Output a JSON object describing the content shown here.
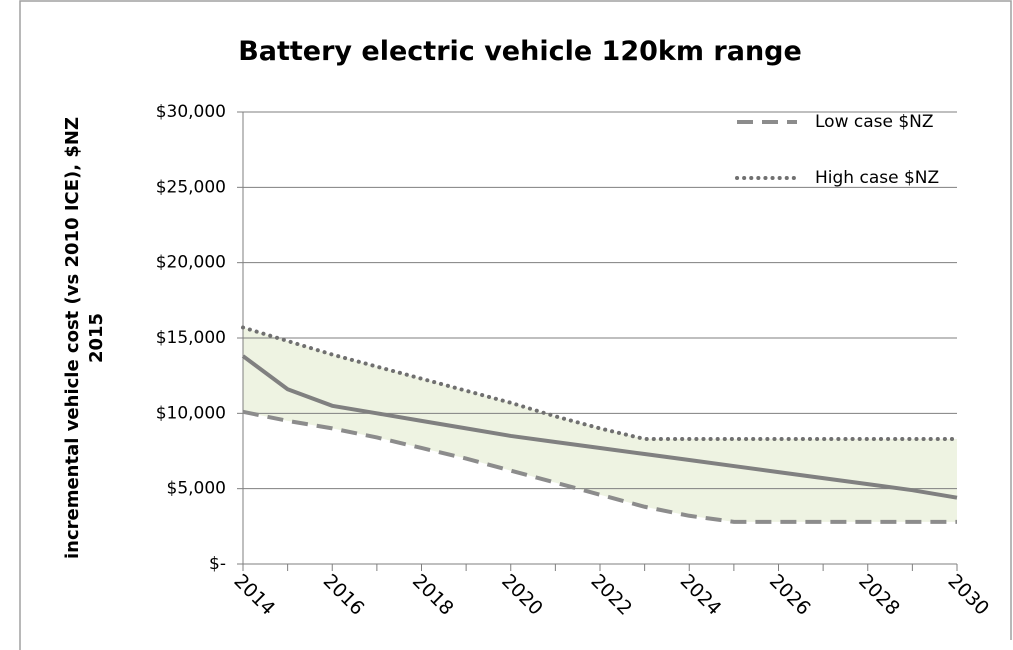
{
  "chart_data": {
    "type": "line",
    "title": "Battery electric vehicle 120km range",
    "y_label": [
      "incremental vehicle cost (vs 2010 ICE), $NZ",
      "2015"
    ],
    "x": [
      2014,
      2015,
      2016,
      2017,
      2018,
      2019,
      2020,
      2021,
      2022,
      2023,
      2024,
      2025,
      2026,
      2027,
      2028,
      2029,
      2030
    ],
    "xlim": [
      2014,
      2030
    ],
    "xticks": [
      2014,
      2016,
      2018,
      2020,
      2022,
      2024,
      2026,
      2028,
      2030
    ],
    "ylim": [
      0,
      30000
    ],
    "yticks": [
      {
        "value": 0,
        "label": "$-"
      },
      {
        "value": 5000,
        "label": "$5,000"
      },
      {
        "value": 10000,
        "label": "$10,000"
      },
      {
        "value": 15000,
        "label": "$15,000"
      },
      {
        "value": 20000,
        "label": "$20,000"
      },
      {
        "value": 25000,
        "label": "$25,000"
      },
      {
        "value": 30000,
        "label": "$30,000"
      }
    ],
    "grid": true,
    "band_color": "#eef3e2",
    "series": [
      {
        "name": "Low case $NZ",
        "color": "#8c8c8c",
        "style": "dashed",
        "values": [
          10100,
          9500,
          9000,
          8400,
          7700,
          7000,
          6200,
          5400,
          4600,
          3800,
          3200,
          2800,
          2800,
          2800,
          2800,
          2800,
          2800
        ]
      },
      {
        "name": "High case $NZ",
        "color": "#707070",
        "style": "dotted",
        "values": [
          15700,
          14800,
          13900,
          13100,
          12300,
          11500,
          10700,
          9800,
          9000,
          8300,
          8300,
          8300,
          8300,
          8300,
          8300,
          8300,
          8300
        ]
      },
      {
        "color": "#808080",
        "style": "solid",
        "values": [
          13800,
          11600,
          10500,
          10000,
          9500,
          9000,
          8500,
          8100,
          7700,
          7300,
          6900,
          6500,
          6100,
          5700,
          5300,
          4900,
          4400
        ]
      }
    ]
  }
}
